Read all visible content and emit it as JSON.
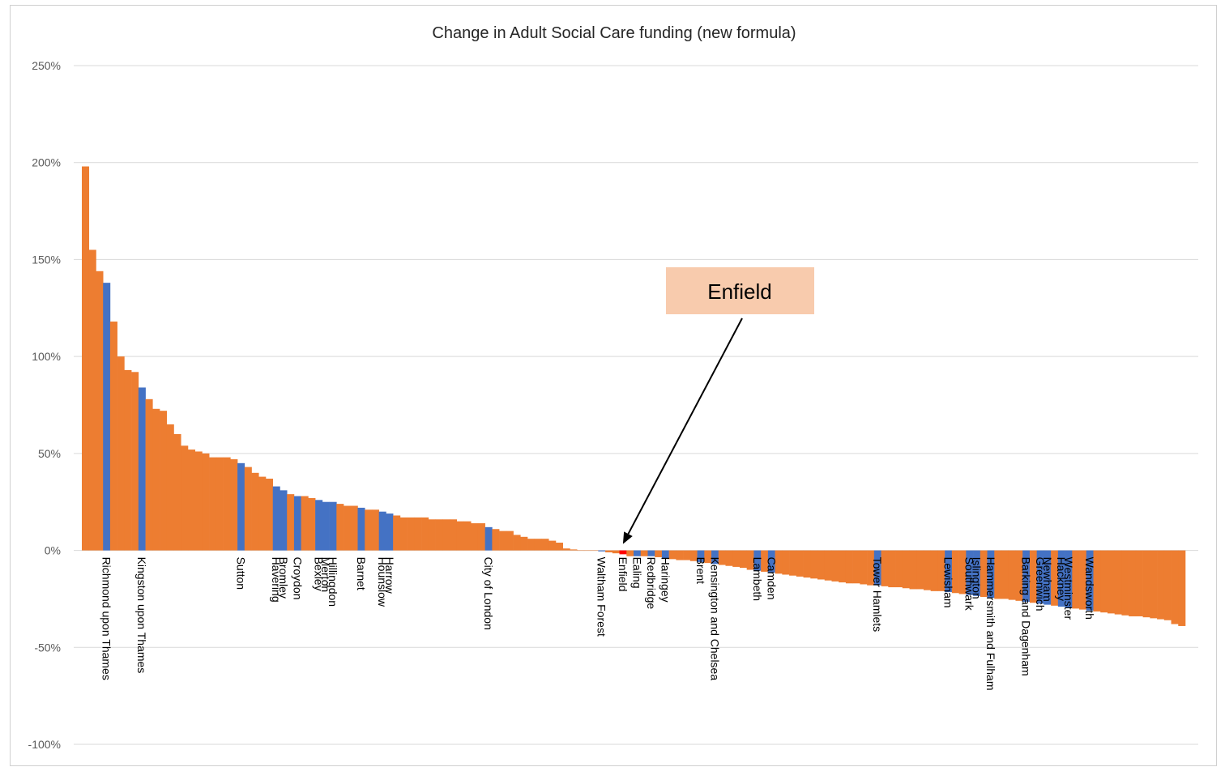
{
  "chart_data": {
    "type": "bar",
    "title": "Change in Adult Social Care funding (new formula)",
    "xlabel": "",
    "ylabel": "",
    "ylim": [
      -100,
      250
    ],
    "yticks": [
      250,
      200,
      150,
      100,
      50,
      0,
      -50,
      -100
    ],
    "ytick_labels": [
      "250%",
      "200%",
      "150%",
      "100%",
      "50%",
      "0%",
      "-50%",
      "-100%"
    ],
    "grid": true,
    "legend": "none",
    "colors": {
      "other": "#ED7D31",
      "london": "#4472C4",
      "highlight": "#FF0000"
    },
    "values": [
      198,
      155,
      144,
      138,
      118,
      100,
      93,
      92,
      84,
      78,
      73,
      72,
      65,
      60,
      54,
      52,
      51,
      50,
      48,
      48,
      48,
      47,
      45,
      43,
      40,
      38,
      37,
      33,
      31,
      29,
      28,
      28,
      27,
      26,
      25,
      25,
      24,
      23,
      23,
      22,
      21,
      21,
      20,
      19,
      18,
      17,
      17,
      17,
      17,
      16,
      16,
      16,
      16,
      15,
      15,
      14,
      14,
      12,
      11,
      10,
      10,
      8,
      7,
      6,
      6,
      6,
      5,
      4,
      1,
      0.5,
      0,
      0,
      0,
      -0.5,
      -1,
      -1.5,
      -2,
      -3,
      -3,
      -3,
      -3,
      -3.5,
      -4,
      -4.5,
      -5,
      -5,
      -5.5,
      -6,
      -6.5,
      -7,
      -7.5,
      -8,
      -8.5,
      -9,
      -10,
      -10.5,
      -11,
      -11.5,
      -12,
      -12.5,
      -13,
      -13.5,
      -14,
      -14.5,
      -15,
      -15.5,
      -16,
      -16.5,
      -17,
      -17,
      -17.5,
      -18,
      -18,
      -18.5,
      -19,
      -19,
      -19.5,
      -20,
      -20,
      -20.5,
      -21,
      -21,
      -21.5,
      -22,
      -22.5,
      -23,
      -23.5,
      -24,
      -24.5,
      -25,
      -25,
      -25.5,
      -26,
      -26.5,
      -27,
      -27.5,
      -28,
      -28.5,
      -29,
      -29.5,
      -30,
      -30.5,
      -31,
      -31.5,
      -32,
      -32.5,
      -33,
      -33.5,
      -34,
      -34,
      -34.5,
      -35,
      -35.5,
      -36,
      -38,
      -39
    ],
    "series_highlight": [
      {
        "index": 3,
        "label": "Richmond upon Thames",
        "kind": "london"
      },
      {
        "index": 8,
        "label": "Kingston upon Thames",
        "kind": "london"
      },
      {
        "index": 22,
        "label": "Sutton",
        "kind": "london"
      },
      {
        "index": 27,
        "label": "Havering",
        "kind": "london"
      },
      {
        "index": 28,
        "label": "Bromley",
        "kind": "london"
      },
      {
        "index": 30,
        "label": "Croydon",
        "kind": "london"
      },
      {
        "index": 33,
        "label": "Bexley",
        "kind": "london"
      },
      {
        "index": 34,
        "label": "Merton",
        "kind": "london"
      },
      {
        "index": 35,
        "label": "Hillingdon",
        "kind": "london"
      },
      {
        "index": 39,
        "label": "Barnet",
        "kind": "london"
      },
      {
        "index": 42,
        "label": "Hounslow",
        "kind": "london"
      },
      {
        "index": 43,
        "label": "Harrow",
        "kind": "london"
      },
      {
        "index": 57,
        "label": "City of London",
        "kind": "london"
      },
      {
        "index": 73,
        "label": "Waltham Forest",
        "kind": "london"
      },
      {
        "index": 76,
        "label": "Enfield",
        "kind": "highlight"
      },
      {
        "index": 78,
        "label": "Ealing",
        "kind": "london"
      },
      {
        "index": 80,
        "label": "Redbridge",
        "kind": "london"
      },
      {
        "index": 82,
        "label": "Haringey",
        "kind": "london"
      },
      {
        "index": 87,
        "label": "Brent",
        "kind": "london"
      },
      {
        "index": 89,
        "label": "Kensington and Chelsea",
        "kind": "london"
      },
      {
        "index": 95,
        "label": "Lambeth",
        "kind": "london"
      },
      {
        "index": 97,
        "label": "Camden",
        "kind": "london"
      },
      {
        "index": 112,
        "label": "Tower Hamlets",
        "kind": "london"
      },
      {
        "index": 122,
        "label": "Lewisham",
        "kind": "london"
      },
      {
        "index": 125,
        "label": "Southwark",
        "kind": "london"
      },
      {
        "index": 126,
        "label": "Islington",
        "kind": "london"
      },
      {
        "index": 128,
        "label": "Hammersmith and Fulham",
        "kind": "london"
      },
      {
        "index": 133,
        "label": "Barking and Dagenham",
        "kind": "london"
      },
      {
        "index": 135,
        "label": "Greenwich",
        "kind": "london"
      },
      {
        "index": 136,
        "label": "Newham",
        "kind": "london"
      },
      {
        "index": 138,
        "label": "Hackney",
        "kind": "london"
      },
      {
        "index": 139,
        "label": "Westminster",
        "kind": "london"
      },
      {
        "index": 142,
        "label": "Wandsworth",
        "kind": "london"
      }
    ],
    "annotation": {
      "text": "Enfield",
      "target_index": 76,
      "box_color": "#F8CBAD"
    }
  }
}
